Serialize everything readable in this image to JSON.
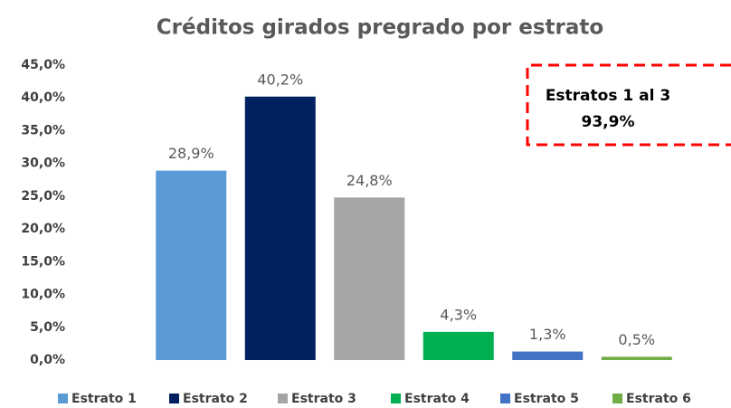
{
  "chart_data": {
    "type": "bar",
    "title": "Créditos girados pregrado por estrato",
    "series": [
      {
        "name": "Estrato 1",
        "color": "#5b9bd5",
        "values": [
          28.9
        ],
        "value_labels": [
          "28,9%"
        ]
      },
      {
        "name": "Estrato 2",
        "color": "#002060",
        "values": [
          40.2
        ],
        "value_labels": [
          "40,2%"
        ]
      },
      {
        "name": "Estrato 3",
        "color": "#a5a5a5",
        "values": [
          24.8
        ],
        "value_labels": [
          "24,8%"
        ]
      },
      {
        "name": "Estrato 4",
        "color": "#00b050",
        "values": [
          4.3
        ],
        "value_labels": [
          "4,3%"
        ]
      },
      {
        "name": "Estrato 5",
        "color": "#4472c4",
        "values": [
          1.3
        ],
        "value_labels": [
          "1,3%"
        ]
      },
      {
        "name": "Estrato 6",
        "color": "#70ad47",
        "values": [
          0.5
        ],
        "value_labels": [
          "0,5%"
        ]
      }
    ],
    "ylim": [
      0,
      45
    ],
    "yticks": [
      {
        "value": 0,
        "label": "0,0%"
      },
      {
        "value": 5,
        "label": "5,0%"
      },
      {
        "value": 10,
        "label": "10,0%"
      },
      {
        "value": 15,
        "label": "15,0%"
      },
      {
        "value": 20,
        "label": "20,0%"
      },
      {
        "value": 25,
        "label": "25,0%"
      },
      {
        "value": 30,
        "label": "30,0%"
      },
      {
        "value": 35,
        "label": "35,0%"
      },
      {
        "value": 40,
        "label": "40,0%"
      },
      {
        "value": 45,
        "label": "45,0%"
      }
    ],
    "grid": false,
    "annotation": [
      "Estratos 1 al 3",
      "93,9%"
    ]
  }
}
